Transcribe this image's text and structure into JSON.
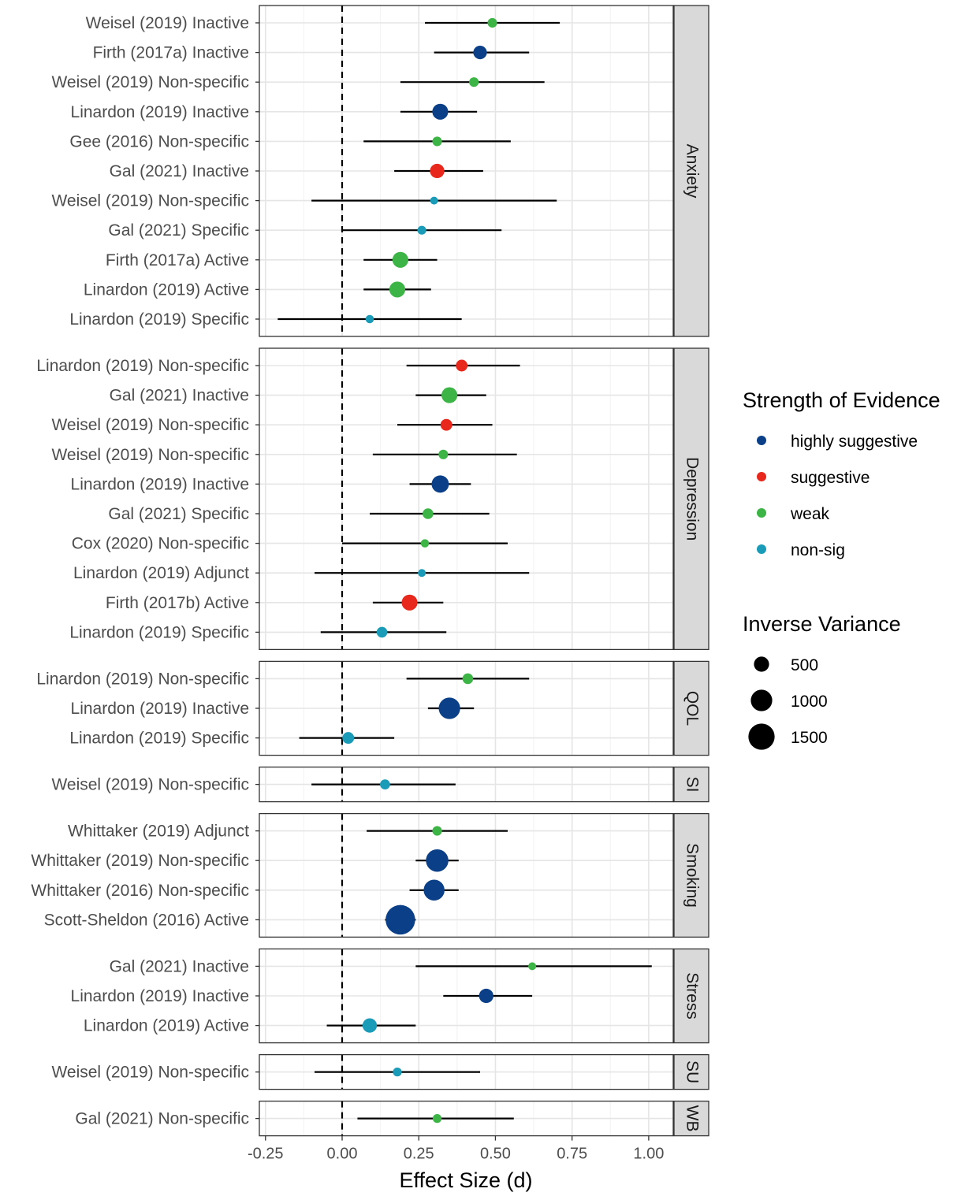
{
  "chart_data": {
    "type": "forest",
    "xlabel": "Effect Size (d)",
    "xlim": [
      -0.27,
      1.08
    ],
    "xticks": [
      -0.25,
      0.0,
      0.25,
      0.5,
      0.75,
      1.0
    ],
    "xtick_labels": [
      "-0.25",
      "0.00",
      "0.25",
      "0.50",
      "0.75",
      "1.00"
    ],
    "reference_line": 0,
    "grid": true,
    "legend_position": "right",
    "legends": {
      "color": {
        "title": "Strength of Evidence",
        "entries": [
          {
            "label": "highly suggestive",
            "color": "#0b3f87"
          },
          {
            "label": "suggestive",
            "color": "#e8281c"
          },
          {
            "label": "weak",
            "color": "#3db446"
          },
          {
            "label": "non-sig",
            "color": "#1a9bb8"
          }
        ]
      },
      "size": {
        "title": "Inverse Variance",
        "entries": [
          {
            "label": "500",
            "value": 500
          },
          {
            "label": "1000",
            "value": 1000
          },
          {
            "label": "1500",
            "value": 1500
          }
        ]
      }
    },
    "facets": [
      {
        "name": "Anxiety",
        "rows": [
          {
            "label": "Weisel (2019) Inactive",
            "est": 0.49,
            "lo": 0.27,
            "hi": 0.71,
            "evidence": "weak",
            "iv": 200
          },
          {
            "label": "Firth (2017a) Inactive",
            "est": 0.45,
            "lo": 0.3,
            "hi": 0.61,
            "evidence": "highly suggestive",
            "iv": 400
          },
          {
            "label": "Weisel (2019) Non-specific",
            "est": 0.43,
            "lo": 0.19,
            "hi": 0.66,
            "evidence": "weak",
            "iv": 200
          },
          {
            "label": "Linardon (2019) Inactive",
            "est": 0.32,
            "lo": 0.19,
            "hi": 0.44,
            "evidence": "highly suggestive",
            "iv": 550
          },
          {
            "label": "Gee (2016) Non-specific",
            "est": 0.31,
            "lo": 0.07,
            "hi": 0.55,
            "evidence": "weak",
            "iv": 200
          },
          {
            "label": "Gal (2021) Inactive",
            "est": 0.31,
            "lo": 0.17,
            "hi": 0.46,
            "evidence": "suggestive",
            "iv": 450
          },
          {
            "label": "Weisel (2019) Non-specific",
            "est": 0.3,
            "lo": -0.1,
            "hi": 0.7,
            "evidence": "non-sig",
            "iv": 60
          },
          {
            "label": "Gal (2021) Specific",
            "est": 0.26,
            "lo": 0.0,
            "hi": 0.52,
            "evidence": "non-sig",
            "iv": 170
          },
          {
            "label": "Firth (2017a) Active",
            "est": 0.19,
            "lo": 0.07,
            "hi": 0.31,
            "evidence": "weak",
            "iv": 550
          },
          {
            "label": "Linardon (2019) Active",
            "est": 0.18,
            "lo": 0.07,
            "hi": 0.29,
            "evidence": "weak",
            "iv": 550
          },
          {
            "label": "Linardon (2019) Specific",
            "est": 0.09,
            "lo": -0.21,
            "hi": 0.39,
            "evidence": "non-sig",
            "iv": 150
          }
        ]
      },
      {
        "name": "Depression",
        "rows": [
          {
            "label": "Linardon (2019) Non-specific",
            "est": 0.39,
            "lo": 0.21,
            "hi": 0.58,
            "evidence": "suggestive",
            "iv": 300
          },
          {
            "label": "Gal (2021) Inactive",
            "est": 0.35,
            "lo": 0.24,
            "hi": 0.47,
            "evidence": "weak",
            "iv": 550
          },
          {
            "label": "Weisel (2019) Non-specific",
            "est": 0.34,
            "lo": 0.18,
            "hi": 0.49,
            "evidence": "suggestive",
            "iv": 300
          },
          {
            "label": "Weisel (2019) Non-specific",
            "est": 0.33,
            "lo": 0.1,
            "hi": 0.57,
            "evidence": "weak",
            "iv": 200
          },
          {
            "label": "Linardon (2019) Inactive",
            "est": 0.32,
            "lo": 0.22,
            "hi": 0.42,
            "evidence": "highly suggestive",
            "iv": 650
          },
          {
            "label": "Gal (2021) Specific",
            "est": 0.28,
            "lo": 0.09,
            "hi": 0.48,
            "evidence": "weak",
            "iv": 250
          },
          {
            "label": "Cox (2020) Non-specific",
            "est": 0.27,
            "lo": 0.0,
            "hi": 0.54,
            "evidence": "weak",
            "iv": 150
          },
          {
            "label": "Linardon (2019) Adjunct",
            "est": 0.26,
            "lo": -0.09,
            "hi": 0.61,
            "evidence": "non-sig",
            "iv": 120
          },
          {
            "label": "Firth (2017b) Active",
            "est": 0.22,
            "lo": 0.1,
            "hi": 0.33,
            "evidence": "suggestive",
            "iv": 550
          },
          {
            "label": "Linardon (2019) Specific",
            "est": 0.13,
            "lo": -0.07,
            "hi": 0.34,
            "evidence": "non-sig",
            "iv": 250
          }
        ]
      },
      {
        "name": "QOL",
        "rows": [
          {
            "label": "Linardon (2019) Non-specific",
            "est": 0.41,
            "lo": 0.21,
            "hi": 0.61,
            "evidence": "weak",
            "iv": 250
          },
          {
            "label": "Linardon (2019) Inactive",
            "est": 0.35,
            "lo": 0.28,
            "hi": 0.43,
            "evidence": "highly suggestive",
            "iv": 1000
          },
          {
            "label": "Linardon (2019) Specific",
            "est": 0.02,
            "lo": -0.14,
            "hi": 0.17,
            "evidence": "non-sig",
            "iv": 300
          }
        ]
      },
      {
        "name": "SI",
        "rows": [
          {
            "label": "Weisel (2019) Non-specific",
            "est": 0.14,
            "lo": -0.1,
            "hi": 0.37,
            "evidence": "non-sig",
            "iv": 220
          }
        ]
      },
      {
        "name": "Smoking",
        "rows": [
          {
            "label": "Whittaker (2019) Adjunct",
            "est": 0.31,
            "lo": 0.08,
            "hi": 0.54,
            "evidence": "weak",
            "iv": 200
          },
          {
            "label": "Whittaker (2019) Non-specific",
            "est": 0.31,
            "lo": 0.24,
            "hi": 0.38,
            "evidence": "highly suggestive",
            "iv": 1100
          },
          {
            "label": "Whittaker (2016) Non-specific",
            "est": 0.3,
            "lo": 0.22,
            "hi": 0.38,
            "evidence": "highly suggestive",
            "iv": 950
          },
          {
            "label": "Scott-Sheldon (2016) Active",
            "est": 0.19,
            "lo": 0.14,
            "hi": 0.24,
            "evidence": "highly suggestive",
            "iv": 1900
          }
        ]
      },
      {
        "name": "Stress",
        "rows": [
          {
            "label": "Gal (2021) Inactive",
            "est": 0.62,
            "lo": 0.24,
            "hi": 1.01,
            "evidence": "weak",
            "iv": 80
          },
          {
            "label": "Linardon (2019) Inactive",
            "est": 0.47,
            "lo": 0.33,
            "hi": 0.62,
            "evidence": "highly suggestive",
            "iv": 450
          },
          {
            "label": "Linardon (2019) Active",
            "est": 0.09,
            "lo": -0.05,
            "hi": 0.24,
            "evidence": "non-sig",
            "iv": 450
          }
        ]
      },
      {
        "name": "SU",
        "rows": [
          {
            "label": "Weisel (2019) Non-specific",
            "est": 0.18,
            "lo": -0.09,
            "hi": 0.45,
            "evidence": "non-sig",
            "iv": 170
          }
        ]
      },
      {
        "name": "WB",
        "rows": [
          {
            "label": "Gal (2021) Non-specific",
            "est": 0.31,
            "lo": 0.05,
            "hi": 0.56,
            "evidence": "weak",
            "iv": 170
          }
        ]
      }
    ]
  }
}
